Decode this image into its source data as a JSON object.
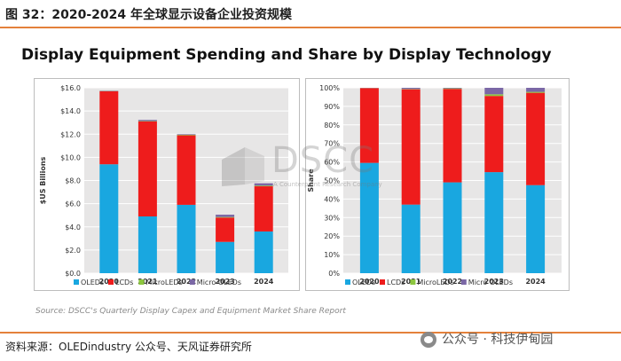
{
  "figure": {
    "title": "图 32：2020-2024 年全球显示设备企业投资规模",
    "chart_title": "Display Equipment Spending and Share by Display Technology",
    "source": "Source: DSCC's Quarterly Display Capex and Equipment Market Share Report",
    "footer": "资料来源：OLEDindustry 公众号、天风证券研究所",
    "wechat_label": "公众号 · 科技伊甸园",
    "watermark": "DSCC",
    "watermark_sub": "A Counterpoint Research Company"
  },
  "colors": {
    "OLEDs": "#19a7e0",
    "LCDs": "#ee1c1c",
    "MicroLEDs": "#8dc63f",
    "Micro OLEDs": "#7b68a6",
    "accent": "#e4813b"
  },
  "chart_data": [
    {
      "type": "bar",
      "stacked": true,
      "ylabel": "$US Billions",
      "ylim": [
        0,
        16
      ],
      "yticks": [
        "$0.0",
        "$2.0",
        "$4.0",
        "$6.0",
        "$8.0",
        "$10.0",
        "$12.0",
        "$14.0",
        "$16.0"
      ],
      "categories": [
        "2020",
        "2021",
        "2022",
        "2023",
        "2024"
      ],
      "series": [
        {
          "name": "OLEDs",
          "values": [
            9.4,
            4.9,
            5.9,
            2.7,
            3.6
          ]
        },
        {
          "name": "LCDs",
          "values": [
            6.3,
            8.2,
            6.0,
            2.1,
            3.9
          ]
        },
        {
          "name": "MicroLEDs",
          "values": [
            0.02,
            0.03,
            0.05,
            0.05,
            0.06
          ]
        },
        {
          "name": "Micro OLEDs",
          "values": [
            0.03,
            0.1,
            0.05,
            0.2,
            0.2
          ]
        }
      ],
      "legend": [
        "OLEDs",
        "LCDs",
        "MicroLEDs",
        "Micro OLEDs"
      ]
    },
    {
      "type": "bar",
      "stacked": true,
      "ylabel": "Share",
      "ylim": [
        0,
        100
      ],
      "yticks": [
        "0%",
        "10%",
        "20%",
        "30%",
        "40%",
        "50%",
        "60%",
        "70%",
        "80%",
        "90%",
        "100%"
      ],
      "categories": [
        "2020",
        "2021",
        "2022",
        "2023",
        "2024"
      ],
      "series": [
        {
          "name": "OLEDs",
          "values": [
            59.5,
            37,
            49,
            54.5,
            47.5
          ]
        },
        {
          "name": "LCDs",
          "values": [
            40.3,
            62.2,
            50.4,
            41.1,
            49.8
          ]
        },
        {
          "name": "MicroLEDs",
          "values": [
            0.1,
            0.2,
            0.3,
            0.9,
            0.5
          ]
        },
        {
          "name": "Micro OLEDs",
          "values": [
            0.1,
            0.6,
            0.3,
            3.5,
            2.2
          ]
        }
      ],
      "legend": [
        "OLEDs",
        "LCDs",
        "MicroLEDs",
        "Micro OLEDs"
      ]
    }
  ]
}
